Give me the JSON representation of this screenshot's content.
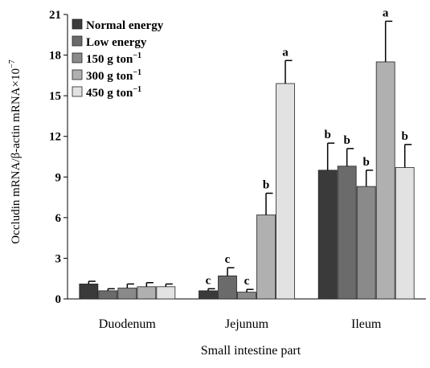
{
  "chart_data": {
    "type": "bar",
    "categories": [
      "Duodenum",
      "Jejunum",
      "Ileum"
    ],
    "xlabel": "Small intestine part",
    "ylabel": {
      "main": "Occludin mRNA/β-actin mRNA×10",
      "sup": "−7"
    },
    "ylim": [
      0,
      21
    ],
    "yticks": [
      "0",
      "3",
      "6",
      "9",
      "12",
      "15",
      "18",
      "21"
    ],
    "legend_position": "top-left",
    "series": [
      {
        "name": "Normal energy",
        "name_main": "Normal energy",
        "name_sup": "",
        "color": "#3a3a3a",
        "values": [
          1.1,
          0.6,
          9.5
        ],
        "errors": [
          0.2,
          0.15,
          2.0
        ],
        "labels": [
          "",
          "c",
          "b"
        ]
      },
      {
        "name": "Low energy",
        "name_main": "Low energy",
        "name_sup": "",
        "color": "#6b6b6b",
        "values": [
          0.6,
          1.7,
          9.8
        ],
        "errors": [
          0.15,
          0.6,
          1.3
        ],
        "labels": [
          "",
          "c",
          "b"
        ]
      },
      {
        "name": "150 g ton−1",
        "name_main": "150 g ton",
        "name_sup": "−1",
        "color": "#8a8a8a",
        "values": [
          0.8,
          0.5,
          8.3
        ],
        "errors": [
          0.3,
          0.2,
          1.2
        ],
        "labels": [
          "",
          "c",
          "b"
        ]
      },
      {
        "name": "300 g ton−1",
        "name_main": "300 g ton",
        "name_sup": "−1",
        "color": "#b0b0b0",
        "values": [
          0.9,
          6.2,
          17.5
        ],
        "errors": [
          0.3,
          1.6,
          3.0
        ],
        "labels": [
          "",
          "b",
          "a"
        ]
      },
      {
        "name": "450 g ton−1",
        "name_main": "450 g ton",
        "name_sup": "−1",
        "color": "#e2e2e2",
        "values": [
          0.9,
          15.9,
          9.7
        ],
        "errors": [
          0.2,
          1.7,
          1.7
        ],
        "labels": [
          "",
          "a",
          "b"
        ]
      }
    ]
  }
}
